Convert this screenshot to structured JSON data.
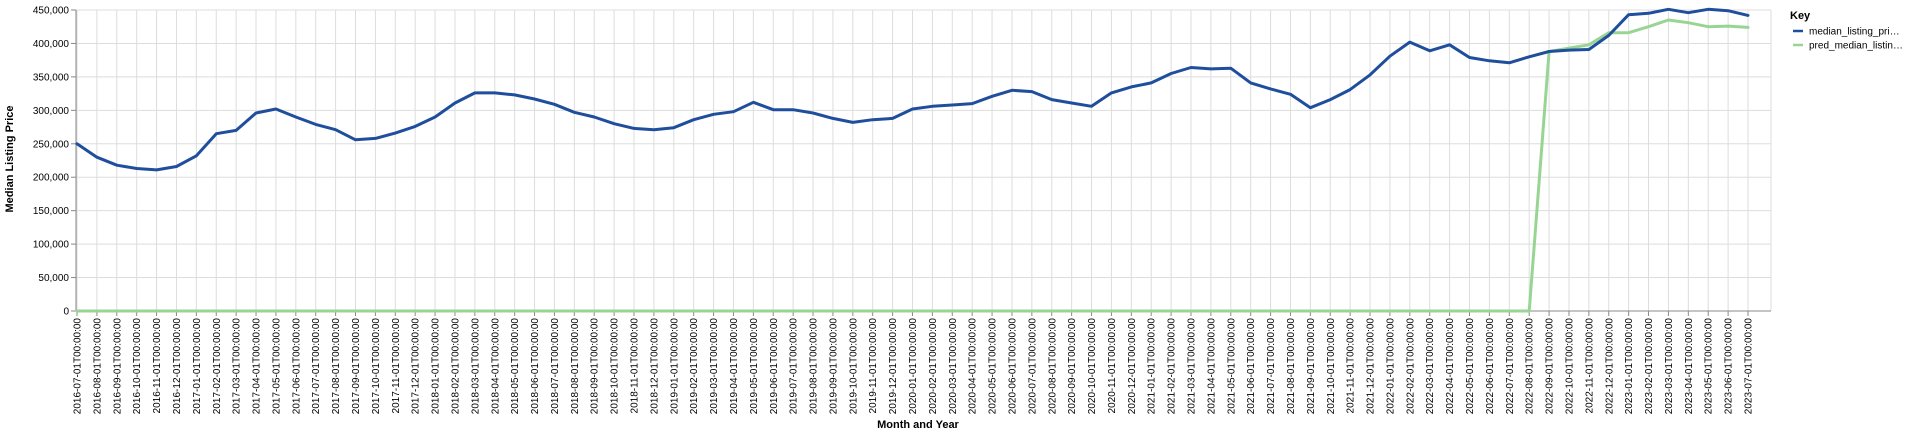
{
  "chart_data": {
    "type": "line",
    "xlabel": "Month and Year",
    "ylabel": "Median Listing Price",
    "ylim": [
      0,
      450000
    ],
    "y_ticks": [
      0,
      50000,
      100000,
      150000,
      200000,
      250000,
      300000,
      350000,
      400000,
      450000
    ],
    "y_tick_labels": [
      "0",
      "50,000",
      "100,000",
      "150,000",
      "200,000",
      "250,000",
      "300,000",
      "350,000",
      "400,000",
      "450,000"
    ],
    "grid": true,
    "legend": {
      "title": "Key",
      "placement": "top-right",
      "entries": [
        "median_listing_pri…",
        "pred_median_listin…"
      ]
    },
    "categories": [
      "2016-07-01T00:00:00",
      "2016-08-01T00:00:00",
      "2016-09-01T00:00:00",
      "2016-10-01T00:00:00",
      "2016-11-01T00:00:00",
      "2016-12-01T00:00:00",
      "2017-01-01T00:00:00",
      "2017-02-01T00:00:00",
      "2017-03-01T00:00:00",
      "2017-04-01T00:00:00",
      "2017-05-01T00:00:00",
      "2017-06-01T00:00:00",
      "2017-07-01T00:00:00",
      "2017-08-01T00:00:00",
      "2017-09-01T00:00:00",
      "2017-10-01T00:00:00",
      "2017-11-01T00:00:00",
      "2017-12-01T00:00:00",
      "2018-01-01T00:00:00",
      "2018-02-01T00:00:00",
      "2018-03-01T00:00:00",
      "2018-04-01T00:00:00",
      "2018-05-01T00:00:00",
      "2018-06-01T00:00:00",
      "2018-07-01T00:00:00",
      "2018-08-01T00:00:00",
      "2018-09-01T00:00:00",
      "2018-10-01T00:00:00",
      "2018-11-01T00:00:00",
      "2018-12-01T00:00:00",
      "2019-01-01T00:00:00",
      "2019-02-01T00:00:00",
      "2019-03-01T00:00:00",
      "2019-04-01T00:00:00",
      "2019-05-01T00:00:00",
      "2019-06-01T00:00:00",
      "2019-07-01T00:00:00",
      "2019-08-01T00:00:00",
      "2019-09-01T00:00:00",
      "2019-10-01T00:00:00",
      "2019-11-01T00:00:00",
      "2019-12-01T00:00:00",
      "2020-01-01T00:00:00",
      "2020-02-01T00:00:00",
      "2020-03-01T00:00:00",
      "2020-04-01T00:00:00",
      "2020-05-01T00:00:00",
      "2020-06-01T00:00:00",
      "2020-07-01T00:00:00",
      "2020-08-01T00:00:00",
      "2020-09-01T00:00:00",
      "2020-10-01T00:00:00",
      "2020-11-01T00:00:00",
      "2020-12-01T00:00:00",
      "2021-01-01T00:00:00",
      "2021-02-01T00:00:00",
      "2021-03-01T00:00:00",
      "2021-04-01T00:00:00",
      "2021-05-01T00:00:00",
      "2021-06-01T00:00:00",
      "2021-07-01T00:00:00",
      "2021-08-01T00:00:00",
      "2021-09-01T00:00:00",
      "2021-10-01T00:00:00",
      "2021-11-01T00:00:00",
      "2021-12-01T00:00:00",
      "2022-01-01T00:00:00",
      "2022-02-01T00:00:00",
      "2022-03-01T00:00:00",
      "2022-04-01T00:00:00",
      "2022-05-01T00:00:00",
      "2022-06-01T00:00:00",
      "2022-07-01T00:00:00",
      "2022-08-01T00:00:00",
      "2022-09-01T00:00:00",
      "2022-10-01T00:00:00",
      "2022-11-01T00:00:00",
      "2022-12-01T00:00:00",
      "2023-01-01T00:00:00",
      "2023-02-01T00:00:00",
      "2023-03-01T00:00:00",
      "2023-04-01T00:00:00",
      "2023-05-01T00:00:00",
      "2023-06-01T00:00:00",
      "2023-07-01T00:00:00"
    ],
    "series": [
      {
        "name": "median_listing_pri…",
        "color": "#1f4e9c",
        "values": [
          250000,
          230000,
          218000,
          213000,
          211000,
          216000,
          232000,
          265000,
          270000,
          296000,
          302000,
          290000,
          279000,
          271000,
          256000,
          258000,
          266000,
          276000,
          290000,
          311000,
          326000,
          326000,
          323000,
          317000,
          309000,
          297000,
          290000,
          280000,
          273000,
          271000,
          274000,
          286000,
          294000,
          298000,
          312000,
          301000,
          301000,
          296000,
          288000,
          282000,
          286000,
          288000,
          302000,
          306000,
          308000,
          310000,
          321000,
          330000,
          328000,
          316000,
          311000,
          306000,
          326000,
          335000,
          341000,
          355000,
          364000,
          362000,
          363000,
          341000,
          332000,
          324000,
          304000,
          316000,
          331000,
          353000,
          381000,
          402000,
          389000,
          398000,
          379000,
          374000,
          371000,
          380000,
          388000,
          390000,
          391000,
          412000,
          443000,
          445000,
          451000,
          446000,
          451000,
          449000,
          442000
        ]
      },
      {
        "name": "pred_median_listin…",
        "color": "#98d594",
        "values": [
          0,
          0,
          0,
          0,
          0,
          0,
          0,
          0,
          0,
          0,
          0,
          0,
          0,
          0,
          0,
          0,
          0,
          0,
          0,
          0,
          0,
          0,
          0,
          0,
          0,
          0,
          0,
          0,
          0,
          0,
          0,
          0,
          0,
          0,
          0,
          0,
          0,
          0,
          0,
          0,
          0,
          0,
          0,
          0,
          0,
          0,
          0,
          0,
          0,
          0,
          0,
          0,
          0,
          0,
          0,
          0,
          0,
          0,
          0,
          0,
          0,
          0,
          0,
          0,
          0,
          0,
          0,
          0,
          0,
          0,
          0,
          0,
          0,
          0,
          388000,
          393000,
          398000,
          416000,
          416000,
          425000,
          435000,
          431000,
          425000,
          426000,
          424000
        ]
      }
    ]
  }
}
